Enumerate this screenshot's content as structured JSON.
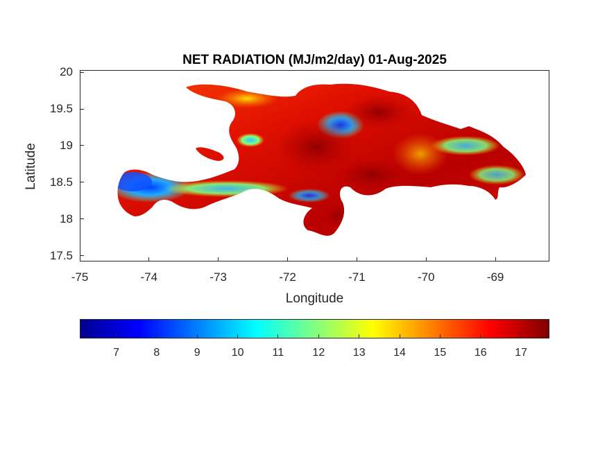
{
  "title": "NET RADIATION (MJ/m2/day) 01-Aug-2025",
  "xlabel": "Longitude",
  "ylabel": "Latitude",
  "x_ticks": [
    "-75",
    "-74",
    "-73",
    "-72",
    "-71",
    "-70",
    "-69"
  ],
  "y_ticks": [
    "20",
    "19.5",
    "19",
    "18.5",
    "18",
    "17.5"
  ],
  "colorbar": {
    "colormap": "jet",
    "ticks": [
      "7",
      "8",
      "9",
      "10",
      "11",
      "12",
      "13",
      "14",
      "15",
      "16",
      "17"
    ],
    "range": [
      6.1,
      17.7
    ]
  },
  "map": {
    "region": "Hispaniola",
    "lon_range": [
      -75,
      -68.22
    ],
    "lat_range": [
      17.42,
      20.03
    ]
  }
}
